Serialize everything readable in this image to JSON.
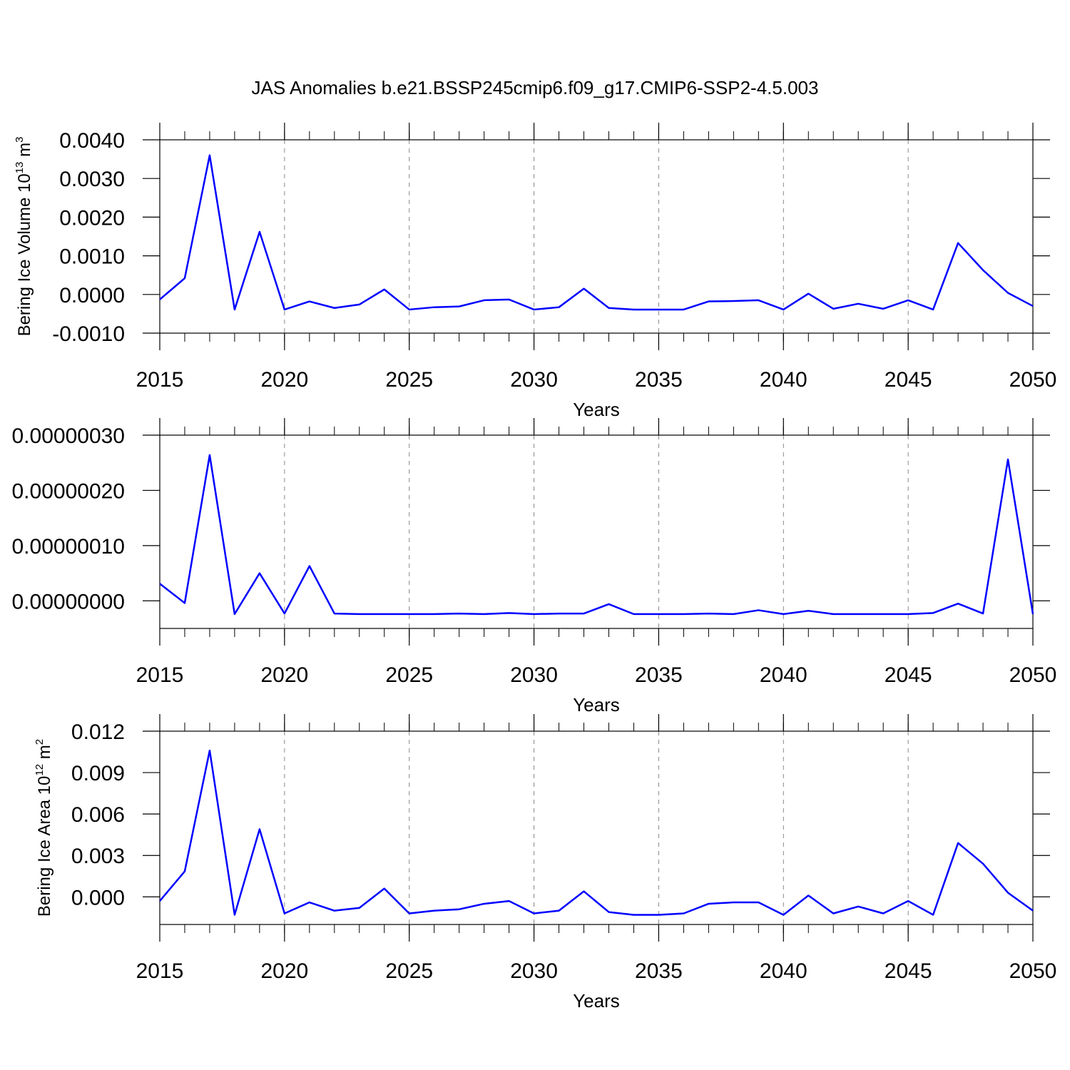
{
  "chart_data": [
    {
      "type": "line",
      "title": "JAS Anomalies b.e21.BSSP245cmip6.f09_g17.CMIP6-SSP2-4.5.003",
      "ylabel": "Bering Ice Volume 10",
      "ylabel_exponent": "13",
      "ylabel_unit": " m",
      "ylabel_unit_exponent": "3",
      "xlabel": "Years",
      "color": "#0000ff",
      "grid": true,
      "x": [
        2015,
        2016,
        2017,
        2018,
        2019,
        2020,
        2021,
        2022,
        2023,
        2024,
        2025,
        2026,
        2027,
        2028,
        2029,
        2030,
        2031,
        2032,
        2033,
        2034,
        2035,
        2036,
        2037,
        2038,
        2039,
        2040,
        2041,
        2042,
        2043,
        2044,
        2045,
        2046,
        2047,
        2048,
        2049,
        2050
      ],
      "values": [
        -0.00013,
        0.00042,
        0.0036,
        -0.00039,
        0.00162,
        -0.00039,
        -0.00018,
        -0.00035,
        -0.00026,
        0.00013,
        -0.00039,
        -0.00033,
        -0.00031,
        -0.00015,
        -0.00013,
        -0.00039,
        -0.00033,
        0.00015,
        -0.00035,
        -0.00039,
        -0.00039,
        -0.00039,
        -0.00018,
        -0.00017,
        -0.00015,
        -0.00039,
        2e-05,
        -0.00037,
        -0.00024,
        -0.00037,
        -0.00015,
        -0.00039,
        0.00133,
        0.00063,
        4e-05,
        -0.0003
      ],
      "xlim": [
        2015,
        2050
      ],
      "xticks": [
        2015,
        2020,
        2025,
        2030,
        2035,
        2040,
        2045,
        2050
      ],
      "ylim": [
        -0.001,
        0.004
      ],
      "yticks": [
        {
          "value": 0.004,
          "label": "0.0040"
        },
        {
          "value": 0.003,
          "label": "0.0030"
        },
        {
          "value": 0.002,
          "label": "0.0020"
        },
        {
          "value": 0.001,
          "label": "0.0010"
        },
        {
          "value": 0,
          "label": "0.0000"
        },
        {
          "value": -0.001,
          "label": "-0.0010"
        }
      ]
    },
    {
      "type": "line",
      "xlabel": "Years",
      "color": "#0000ff",
      "grid": true,
      "x": [
        2015,
        2016,
        2017,
        2018,
        2019,
        2020,
        2021,
        2022,
        2023,
        2024,
        2025,
        2026,
        2027,
        2028,
        2029,
        2030,
        2031,
        2032,
        2033,
        2034,
        2035,
        2036,
        2037,
        2038,
        2039,
        2040,
        2041,
        2042,
        2043,
        2044,
        2045,
        2046,
        2047,
        2048,
        2049,
        2050
      ],
      "values": [
        3.1e-08,
        -4e-09,
        2.64e-07,
        -2.4e-08,
        5e-08,
        -2.3e-08,
        6.3e-08,
        -2.3e-08,
        -2.4e-08,
        -2.4e-08,
        -2.4e-08,
        -2.4e-08,
        -2.3e-08,
        -2.4e-08,
        -2.2e-08,
        -2.4e-08,
        -2.3e-08,
        -2.3e-08,
        -6e-09,
        -2.4e-08,
        -2.4e-08,
        -2.4e-08,
        -2.3e-08,
        -2.4e-08,
        -1.7e-08,
        -2.4e-08,
        -1.8e-08,
        -2.4e-08,
        -2.4e-08,
        -2.4e-08,
        -2.4e-08,
        -2.2e-08,
        -5e-09,
        -2.3e-08,
        2.56e-07,
        -2.4e-08
      ],
      "xlim": [
        2015,
        2050
      ],
      "xticks": [
        2015,
        2020,
        2025,
        2030,
        2035,
        2040,
        2045,
        2050
      ],
      "ylim": [
        -5e-08,
        3e-07
      ],
      "yticks": [
        {
          "value": 3e-07,
          "label": "0.00000030"
        },
        {
          "value": 2e-07,
          "label": "0.00000020"
        },
        {
          "value": 1e-07,
          "label": "0.00000010"
        },
        {
          "value": 0,
          "label": "0.00000000"
        }
      ]
    },
    {
      "type": "line",
      "ylabel": "Bering Ice Area 10",
      "ylabel_exponent": "12",
      "ylabel_unit": " m",
      "ylabel_unit_exponent": "2",
      "xlabel": "Years",
      "color": "#0000ff",
      "grid": true,
      "x": [
        2015,
        2016,
        2017,
        2018,
        2019,
        2020,
        2021,
        2022,
        2023,
        2024,
        2025,
        2026,
        2027,
        2028,
        2029,
        2030,
        2031,
        2032,
        2033,
        2034,
        2035,
        2036,
        2037,
        2038,
        2039,
        2040,
        2041,
        2042,
        2043,
        2044,
        2045,
        2046,
        2047,
        2048,
        2049,
        2050
      ],
      "values": [
        -0.0003,
        0.00185,
        0.0106,
        -0.0013,
        0.0049,
        -0.0012,
        -0.0004,
        -0.001,
        -0.0008,
        0.0006,
        -0.0012,
        -0.001,
        -0.0009,
        -0.0005,
        -0.0003,
        -0.0012,
        -0.001,
        0.0004,
        -0.0011,
        -0.0013,
        -0.0013,
        -0.0012,
        -0.0005,
        -0.0004,
        -0.0004,
        -0.0013,
        0.0001,
        -0.0012,
        -0.0007,
        -0.0012,
        -0.0003,
        -0.0013,
        0.0039,
        0.0024,
        0.0003,
        -0.001
      ],
      "xlim": [
        2015,
        2050
      ],
      "xticks": [
        2015,
        2020,
        2025,
        2030,
        2035,
        2040,
        2045,
        2050
      ],
      "ylim": [
        -0.002,
        0.012
      ],
      "yticks": [
        0.012,
        0.009,
        0.006,
        0.003,
        {
          "value": 0,
          "label": "0.000"
        }
      ]
    }
  ]
}
